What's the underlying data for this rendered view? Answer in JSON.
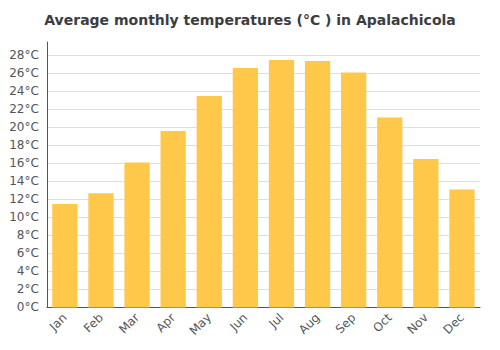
{
  "chart_data": {
    "type": "bar",
    "title": "Average monthly temperatures (°C ) in Apalachicola",
    "categories": [
      "Jan",
      "Feb",
      "Mar",
      "Apr",
      "May",
      "Jun",
      "Jul",
      "Aug",
      "Sep",
      "Oct",
      "Nov",
      "Dec"
    ],
    "values": [
      11.5,
      12.7,
      16.1,
      19.6,
      23.5,
      26.6,
      27.5,
      27.4,
      26.1,
      21.1,
      16.5,
      13.1
    ],
    "color": "#FFC84A",
    "ylim": [
      0,
      29.5
    ],
    "yticks": [
      {
        "value": 0,
        "label": "0°C"
      },
      {
        "value": 2,
        "label": "2°C"
      },
      {
        "value": 4,
        "label": "4°C"
      },
      {
        "value": 6,
        "label": "6°C"
      },
      {
        "value": 8,
        "label": "8°C"
      },
      {
        "value": 10,
        "label": "10°C"
      },
      {
        "value": 12,
        "label": "12°C"
      },
      {
        "value": 14,
        "label": "14°C"
      },
      {
        "value": 16,
        "label": "16°C"
      },
      {
        "value": 18,
        "label": "18°C"
      },
      {
        "value": 20,
        "label": "20°C"
      },
      {
        "value": 22,
        "label": "22°C"
      },
      {
        "value": 24,
        "label": "24°C"
      },
      {
        "value": 26,
        "label": "26°C"
      },
      {
        "value": 28,
        "label": "28°C"
      }
    ],
    "grid": true
  }
}
